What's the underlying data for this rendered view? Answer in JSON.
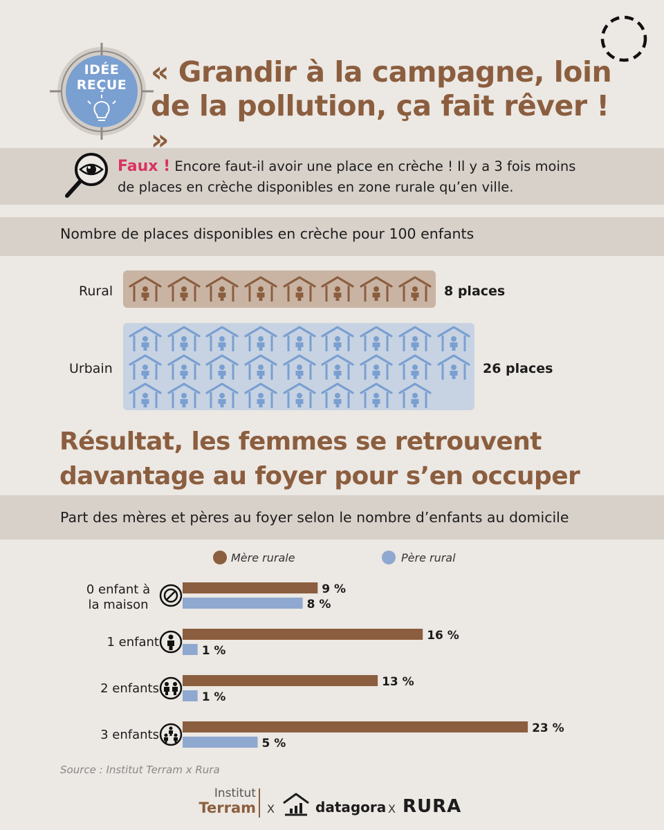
{
  "badge": {
    "line1": "IDÉE",
    "line2": "REÇUE"
  },
  "header": {
    "title_line1": "« Grandir à la campagne, loin",
    "title_line2": "de la pollution, ça fait rêver ! »"
  },
  "faux": {
    "word": "Faux !",
    "line1": " Encore faut-il avoir une place en crèche ! Il y a 3 fois moins",
    "line2": "de places en crèche disponibles en zone rurale qu’en ville."
  },
  "creche": {
    "title": "Nombre de places disponibles en crèche pour 100 enfants",
    "rural_label": "Rural",
    "rural_places_label": "8 places",
    "urbain_label": "Urbain",
    "urbain_places_label": "26 places",
    "rural_color": "#8b5e3f",
    "urbain_color": "#7a9fd1"
  },
  "result": {
    "line1": "Résultat, les femmes se retrouvent",
    "line2": "davantage au foyer pour s’en occuper"
  },
  "foyer": {
    "title": "Part des mères et pères au foyer selon le nombre d’enfants au domicile",
    "legend_mere": "Mère rurale",
    "legend_pere": "Père rural",
    "cat0_line1": "0 enfant à",
    "cat0_line2": "la maison",
    "cat1": "1 enfant",
    "cat2": "2 enfants",
    "cat3": "3 enfants"
  },
  "chart_data": [
    {
      "type": "pictogram",
      "title": "Nombre de places disponibles en crèche pour 100 enfants",
      "categories": [
        "Rural",
        "Urbain"
      ],
      "values": [
        8,
        26
      ],
      "value_labels": [
        "8 places",
        "26 places"
      ],
      "colors": [
        "#8b5e3f",
        "#7a9fd1"
      ]
    },
    {
      "type": "bar",
      "orientation": "horizontal",
      "title": "Part des mères et pères au foyer selon le nombre d’enfants au domicile",
      "categories": [
        "0 enfant à la maison",
        "1 enfant",
        "2 enfants",
        "3 enfants"
      ],
      "series": [
        {
          "name": "Mère rurale",
          "values": [
            9,
            16,
            13,
            23
          ],
          "labels": [
            "9 %",
            "16 %",
            "13 %",
            "23 %"
          ],
          "color": "#8b5e3f"
        },
        {
          "name": "Père rural",
          "values": [
            8,
            1,
            1,
            5
          ],
          "labels": [
            "8 %",
            "1 %",
            "1 %",
            "5 %"
          ],
          "color": "#8fa8cf"
        }
      ],
      "legend": "top",
      "grid": false
    }
  ],
  "source": "Source : Institut Terram x Rura",
  "footer": {
    "terram_line1": "Institut",
    "terram_line2": "Terram",
    "x1": "X",
    "datagora": "datagora",
    "x2": "X",
    "rura": "RURA"
  }
}
